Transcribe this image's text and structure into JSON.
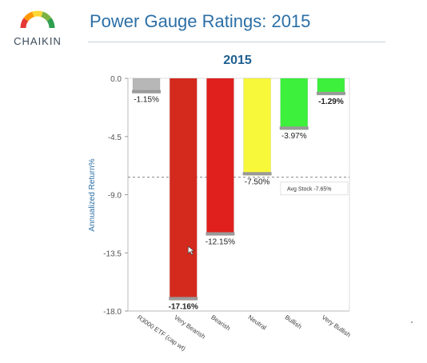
{
  "brand": {
    "name": "CHAIKIN",
    "gauge_colors": [
      "#e53935",
      "#ff9800",
      "#fdd835",
      "#7cb342",
      "#2e9e4f"
    ]
  },
  "page_title": "Power Gauge Ratings: 2015",
  "chart_data": {
    "type": "bar",
    "title": "2015",
    "xlabel": "",
    "ylabel": "Annualized Return%",
    "ylim": [
      -18.0,
      0.0
    ],
    "yticks": [
      "0.0",
      "-4.5",
      "-9.0",
      "-13.5",
      "-18.0"
    ],
    "categories": [
      "R3000 ETF (cap wt)",
      "Very Bearish",
      "Bearish",
      "Neutral",
      "Bullish",
      "Very Bullish"
    ],
    "values": [
      -1.15,
      -17.16,
      -12.15,
      -7.5,
      -3.97,
      -1.29
    ],
    "data_labels": [
      "-1.15%",
      "-17.16%",
      "-12.15%",
      "-7.50%",
      "-3.97%",
      "-1.29%"
    ],
    "colors": [
      "#b7b7b7",
      "#d42a1e",
      "#e0201d",
      "#f8f83a",
      "#3cf03c",
      "#3cf03c"
    ],
    "reference_line": {
      "value": -7.65,
      "label": "Avg Stock -7.65%"
    },
    "grid": false,
    "legend": "none"
  }
}
